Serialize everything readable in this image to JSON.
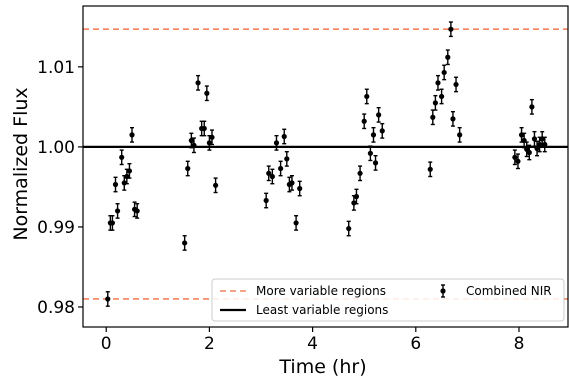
{
  "chart_data": {
    "type": "scatter",
    "xlabel": "Time (hr)",
    "ylabel": "Normalized Flux",
    "xlim": [
      -0.45,
      8.95
    ],
    "ylim": [
      0.9775,
      1.0176
    ],
    "x_ticks": [
      0,
      2,
      4,
      6,
      8
    ],
    "x_tick_labels": [
      "0",
      "2",
      "4",
      "6",
      "8"
    ],
    "y_ticks": [
      0.98,
      0.99,
      1.0,
      1.01
    ],
    "y_tick_labels": [
      "0.98",
      "0.99",
      "1.00",
      "1.01"
    ],
    "grid": false,
    "legend_position": "bottom-right",
    "reference_lines": [
      {
        "name": "More variable regions",
        "style": "dashed",
        "color": "#f4845f",
        "y": 1.0147
      },
      {
        "name": "More variable regions",
        "style": "dashed",
        "color": "#f4845f",
        "y": 0.981
      },
      {
        "name": "Least variable regions",
        "style": "solid",
        "color": "#000000",
        "y": 1.0
      }
    ],
    "series": [
      {
        "name": "Combined NIR",
        "color": "#000000",
        "marker": "circle",
        "error": 0.0009,
        "x": [
          0.03,
          0.08,
          0.12,
          0.18,
          0.22,
          0.3,
          0.35,
          0.4,
          0.45,
          0.5,
          0.55,
          0.6,
          1.52,
          1.58,
          1.65,
          1.7,
          1.78,
          1.85,
          1.9,
          1.95,
          2.0,
          2.05,
          2.12,
          3.1,
          3.15,
          3.22,
          3.3,
          3.38,
          3.45,
          3.5,
          3.55,
          3.6,
          3.68,
          3.75,
          4.7,
          4.8,
          4.85,
          4.92,
          5.0,
          5.05,
          5.12,
          5.18,
          5.22,
          5.28,
          5.35,
          6.28,
          6.33,
          6.38,
          6.43,
          6.5,
          6.55,
          6.62,
          6.68,
          6.72,
          6.78,
          6.85,
          7.92,
          7.98,
          8.05,
          8.1,
          8.15,
          8.2,
          8.25,
          8.3,
          8.35,
          8.4,
          8.45,
          8.5
        ],
        "y": [
          0.981,
          0.9905,
          0.9905,
          0.9953,
          0.992,
          0.9987,
          0.9955,
          0.9963,
          0.997,
          1.0015,
          0.9922,
          0.992,
          0.988,
          0.9973,
          1.0008,
          1.0002,
          1.008,
          1.0023,
          1.0023,
          1.0067,
          1.0005,
          1.0012,
          0.9952,
          0.9933,
          0.9967,
          0.9963,
          1.0005,
          0.9973,
          1.0013,
          0.9985,
          0.9953,
          0.9955,
          0.9905,
          0.9948,
          0.9898,
          0.993,
          0.9938,
          0.9967,
          1.0032,
          1.0063,
          0.9992,
          1.0015,
          0.998,
          1.004,
          1.002,
          0.9972,
          1.0037,
          1.0055,
          1.008,
          1.0063,
          1.0093,
          1.0112,
          1.0147,
          1.0035,
          1.0078,
          1.0015,
          0.9987,
          0.9982,
          1.0015,
          1.0008,
          0.9997,
          0.9993,
          1.005,
          1.001,
          0.9998,
          1.0003,
          1.001,
          1.0003
        ]
      }
    ],
    "legend": [
      {
        "label": "More variable regions",
        "style": "dashed",
        "color": "#f4845f"
      },
      {
        "label": "Combined NIR",
        "style": "errorbar-marker",
        "color": "#000000"
      },
      {
        "label": "Least variable regions",
        "style": "solid",
        "color": "#000000"
      }
    ]
  }
}
